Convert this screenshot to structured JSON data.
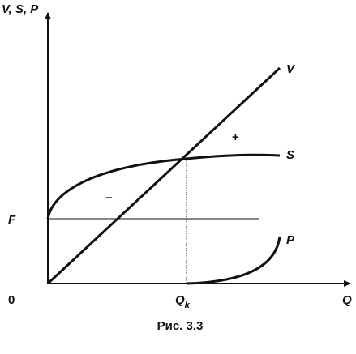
{
  "axes": {
    "y_label": "V, S, P",
    "x_label": "Q",
    "origin": "0",
    "f_label": "F",
    "qk_label": {
      "main": "Q",
      "sub": "k"
    }
  },
  "curves": {
    "v": "V",
    "s": "S",
    "p": "P"
  },
  "regions": {
    "plus": "+",
    "minus": "−"
  },
  "caption": "Рис. 3.3"
}
